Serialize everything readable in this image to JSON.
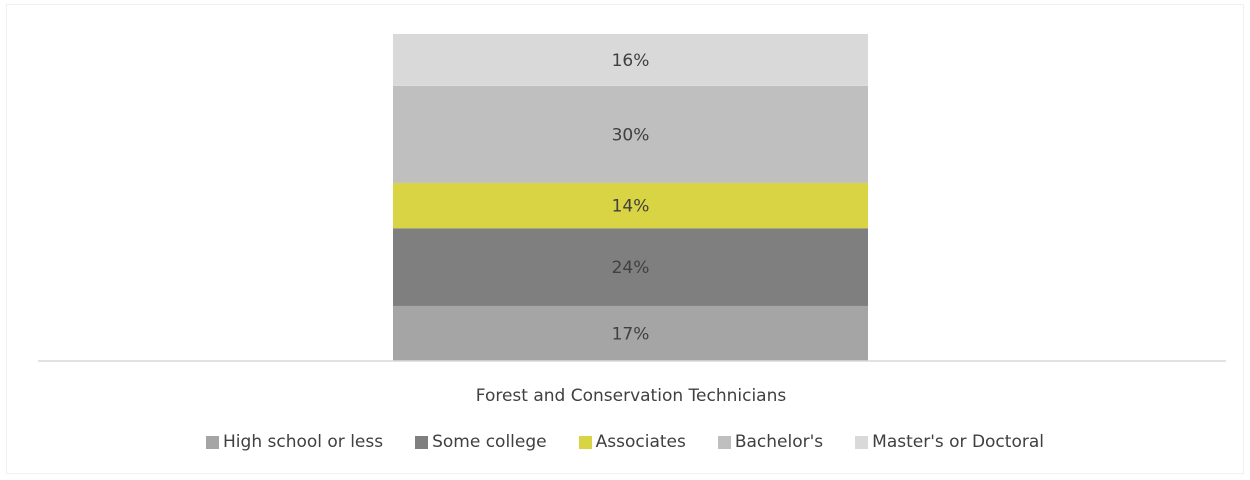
{
  "chart_data": {
    "type": "bar",
    "stacked": true,
    "categories": [
      "Forest and Conservation Technicians"
    ],
    "series": [
      {
        "name": "High school or less",
        "values": [
          17
        ],
        "color": "#a5a5a5",
        "label": "17%"
      },
      {
        "name": "Some college",
        "values": [
          24
        ],
        "color": "#7f7f7f",
        "label": "24%"
      },
      {
        "name": "Associates",
        "values": [
          14
        ],
        "color": "#d9d444",
        "label": "14%"
      },
      {
        "name": "Bachelor's",
        "values": [
          30
        ],
        "color": "#bfbfbf",
        "label": "30%"
      },
      {
        "name": "Master's or Doctoral",
        "values": [
          16
        ],
        "color": "#d9d9d9",
        "label": "16%"
      }
    ],
    "ylim": [
      0,
      101
    ],
    "grid": false,
    "legend": "bottom"
  }
}
